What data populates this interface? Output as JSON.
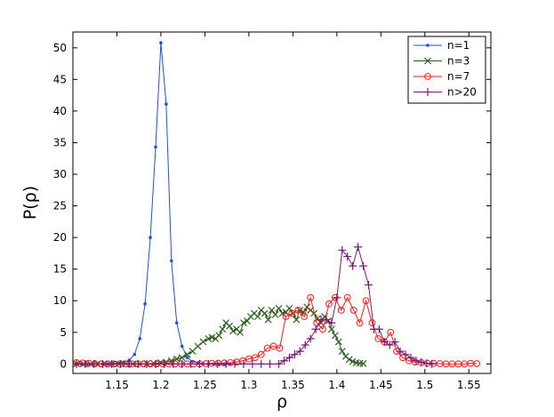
{
  "chart_data": {
    "type": "line",
    "title": "",
    "xlabel": "ρ",
    "ylabel": "P(ρ)",
    "xlim": [
      1.1,
      1.575
    ],
    "ylim": [
      -1.5,
      52.5
    ],
    "xticks": [
      1.15,
      1.2,
      1.25,
      1.3,
      1.35,
      1.4,
      1.45,
      1.5,
      1.55
    ],
    "xtick_labels": [
      "1.15",
      "1.2",
      "1.25",
      "1.3",
      "1.35",
      "1.4",
      "1.45",
      "1.5",
      "1.55"
    ],
    "yticks": [
      0,
      5,
      10,
      15,
      20,
      25,
      30,
      35,
      40,
      45,
      50
    ],
    "ytick_labels": [
      "0",
      "5",
      "10",
      "15",
      "20",
      "25",
      "30",
      "35",
      "40",
      "45",
      "50"
    ],
    "grid": false,
    "legend_position": "top-right",
    "series": [
      {
        "name": "n=1",
        "color": "#1f4fe0",
        "marker": "dot",
        "x": [
          1.104,
          1.11,
          1.116,
          1.122,
          1.128,
          1.134,
          1.14,
          1.146,
          1.152,
          1.158,
          1.164,
          1.17,
          1.176,
          1.182,
          1.188,
          1.194,
          1.2,
          1.206,
          1.212,
          1.218,
          1.224,
          1.23,
          1.236,
          1.242,
          1.248,
          1.254,
          1.26,
          1.266,
          1.272,
          1.278
        ],
        "y": [
          0,
          0,
          0,
          0,
          0,
          0,
          0,
          0.05,
          0.1,
          0.3,
          0.6,
          1.5,
          4.0,
          9.5,
          20.0,
          34.3,
          50.8,
          41.1,
          16.3,
          6.5,
          2.8,
          1.0,
          0.4,
          0.15,
          0.05,
          0,
          0,
          0,
          0,
          0
        ]
      },
      {
        "name": "n=3",
        "color": "#2a5e1e",
        "marker": "x",
        "x": [
          1.104,
          1.112,
          1.12,
          1.128,
          1.136,
          1.144,
          1.152,
          1.16,
          1.168,
          1.176,
          1.184,
          1.192,
          1.2,
          1.206,
          1.212,
          1.218,
          1.224,
          1.23,
          1.236,
          1.242,
          1.248,
          1.254,
          1.258,
          1.262,
          1.266,
          1.27,
          1.274,
          1.278,
          1.282,
          1.286,
          1.29,
          1.294,
          1.298,
          1.302,
          1.306,
          1.31,
          1.314,
          1.318,
          1.322,
          1.326,
          1.33,
          1.334,
          1.338,
          1.342,
          1.346,
          1.35,
          1.354,
          1.358,
          1.362,
          1.366,
          1.37,
          1.374,
          1.378,
          1.382,
          1.386,
          1.39,
          1.394,
          1.398,
          1.402,
          1.406,
          1.41,
          1.414,
          1.418,
          1.422,
          1.426,
          1.43
        ],
        "y": [
          0,
          0,
          0,
          0,
          0,
          0,
          0,
          0,
          0,
          0,
          0.05,
          0.1,
          0.2,
          0.3,
          0.5,
          0.8,
          1.0,
          1.5,
          2.0,
          2.8,
          3.5,
          4.0,
          4.2,
          4.0,
          4.5,
          5.5,
          6.5,
          6.0,
          5.2,
          5.5,
          5.0,
          6.5,
          6.8,
          7.5,
          8.0,
          7.5,
          8.5,
          8.0,
          7.0,
          8.5,
          7.8,
          8.8,
          8.0,
          8.2,
          8.8,
          8.0,
          7.0,
          8.5,
          8.2,
          9.0,
          8.5,
          8.0,
          7.2,
          6.5,
          7.5,
          6.8,
          5.5,
          4.5,
          3.5,
          2.0,
          1.2,
          0.7,
          0.4,
          0.2,
          0.1,
          0.05
        ]
      },
      {
        "name": "n=7",
        "color": "#ff1a1a",
        "marker": "circle",
        "x": [
          1.104,
          1.111,
          1.118,
          1.125,
          1.132,
          1.139,
          1.146,
          1.153,
          1.16,
          1.167,
          1.174,
          1.181,
          1.188,
          1.195,
          1.202,
          1.209,
          1.216,
          1.223,
          1.23,
          1.237,
          1.244,
          1.251,
          1.258,
          1.265,
          1.272,
          1.279,
          1.286,
          1.293,
          1.3,
          1.307,
          1.314,
          1.321,
          1.328,
          1.335,
          1.342,
          1.349,
          1.356,
          1.363,
          1.37,
          1.377,
          1.384,
          1.391,
          1.398,
          1.405,
          1.412,
          1.419,
          1.426,
          1.433,
          1.44,
          1.447,
          1.454,
          1.461,
          1.468,
          1.475,
          1.482,
          1.489,
          1.496,
          1.503,
          1.51,
          1.517,
          1.524,
          1.531,
          1.538,
          1.545,
          1.552,
          1.559
        ],
        "y": [
          0.2,
          0.15,
          0.1,
          0.05,
          0,
          0,
          0,
          0,
          0,
          0,
          0,
          0,
          0,
          0,
          0,
          0,
          0,
          0,
          0,
          0,
          0,
          0.05,
          0.1,
          0.1,
          0.15,
          0.2,
          0.3,
          0.5,
          0.8,
          1.0,
          1.5,
          2.5,
          2.8,
          2.5,
          7.5,
          8.0,
          8.5,
          7.5,
          10.5,
          6.5,
          5.5,
          9.5,
          10.5,
          8.5,
          10.5,
          8.5,
          6.5,
          10.0,
          6.5,
          4.0,
          3.5,
          5.0,
          2.0,
          1.0,
          0.5,
          0.3,
          0.2,
          0.1,
          0.1,
          0.05,
          0,
          0,
          0,
          0,
          0.1,
          0.05
        ]
      },
      {
        "name": "n>20",
        "color": "#7a1a7a",
        "marker": "plus",
        "x": [
          1.104,
          1.114,
          1.124,
          1.134,
          1.144,
          1.154,
          1.164,
          1.174,
          1.184,
          1.194,
          1.204,
          1.214,
          1.224,
          1.234,
          1.244,
          1.254,
          1.264,
          1.274,
          1.284,
          1.294,
          1.304,
          1.314,
          1.324,
          1.334,
          1.34,
          1.346,
          1.352,
          1.358,
          1.364,
          1.37,
          1.376,
          1.382,
          1.388,
          1.394,
          1.4,
          1.406,
          1.412,
          1.418,
          1.424,
          1.43,
          1.436,
          1.442,
          1.448,
          1.454,
          1.46,
          1.466,
          1.472,
          1.478,
          1.484,
          1.49,
          1.496,
          1.502,
          1.508
        ],
        "y": [
          0,
          0,
          0,
          0,
          0,
          0,
          0,
          0,
          0,
          0,
          0,
          0,
          0,
          0,
          0,
          0,
          0,
          0,
          0,
          0,
          0,
          0,
          0,
          0,
          0.5,
          1.0,
          1.5,
          2.0,
          3.0,
          4.0,
          5.5,
          7.0,
          7.0,
          6.5,
          10.5,
          18.0,
          17.0,
          15.5,
          18.5,
          15.5,
          12.5,
          5.5,
          5.5,
          3.5,
          3.0,
          3.5,
          2.0,
          1.5,
          1.0,
          0.5,
          0.3,
          0.1,
          0
        ]
      }
    ]
  }
}
